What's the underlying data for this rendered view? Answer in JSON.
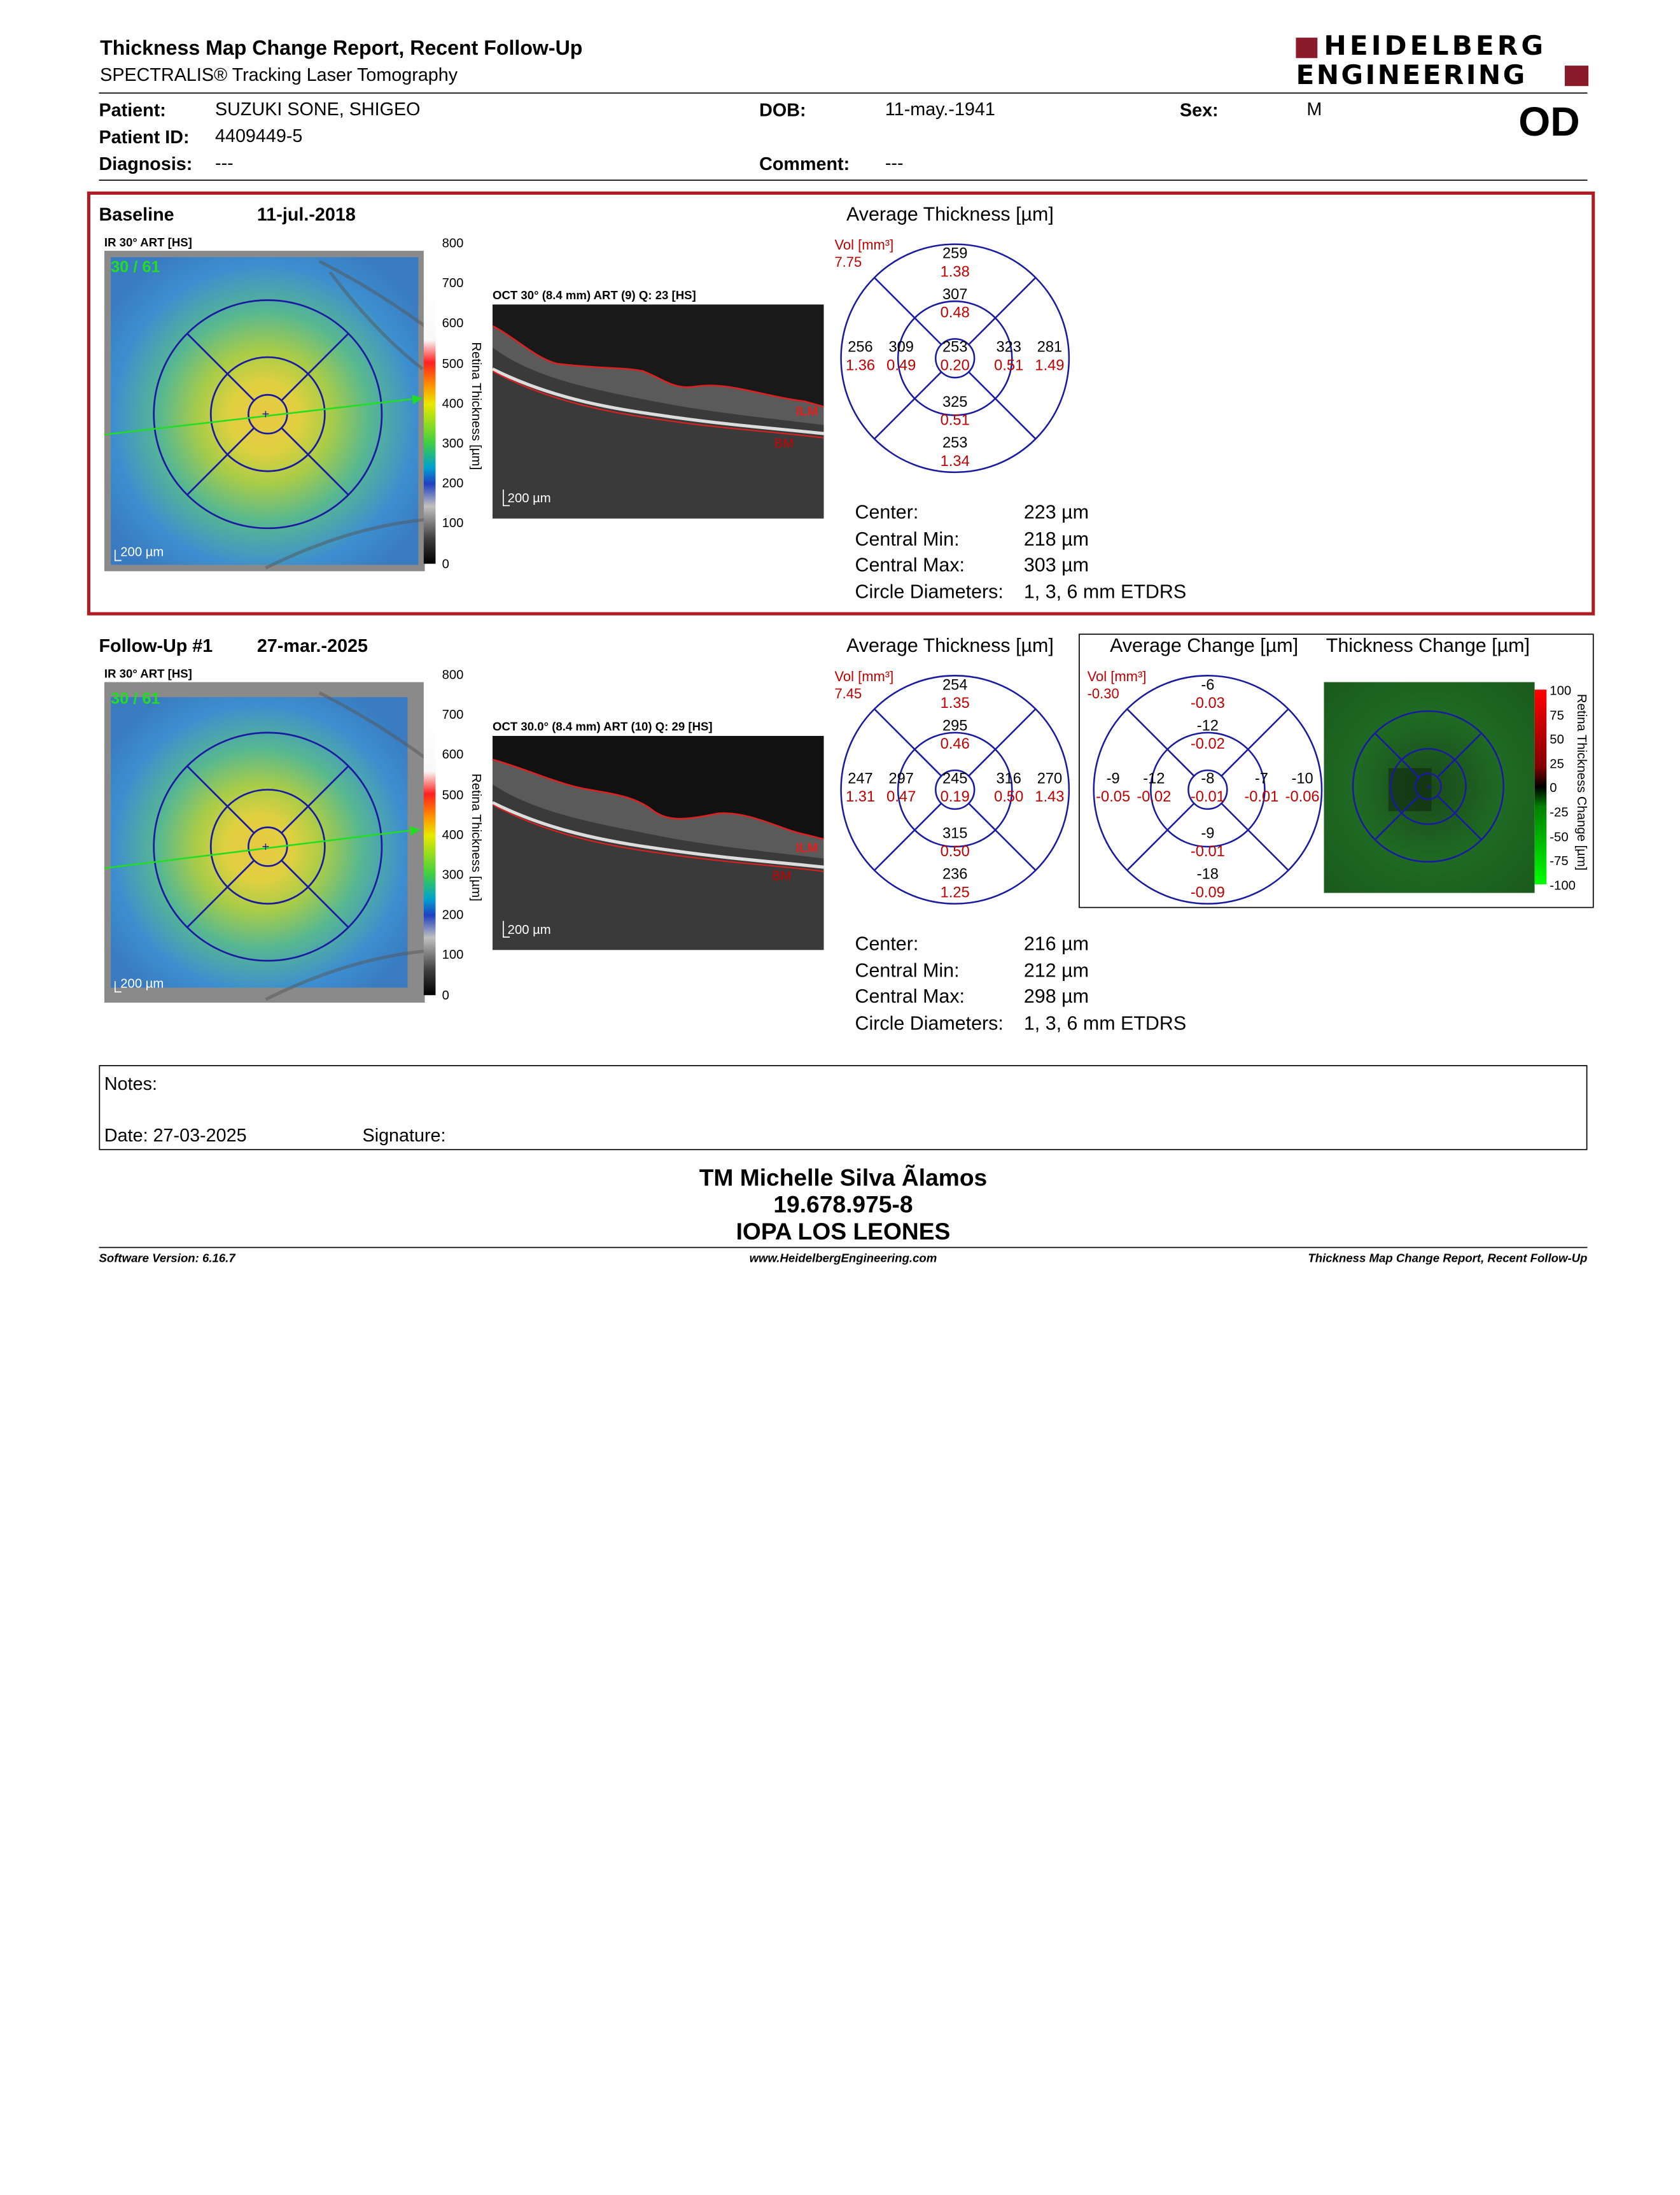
{
  "header": {
    "title": "Thickness Map Change Report, Recent Follow-Up",
    "subtitle": "SPECTRALIS® Tracking Laser Tomography",
    "logo_line1": "HEIDELBERG",
    "logo_line2": "ENGINEERING",
    "eye": "OD",
    "brand_color": "#8b1a2b"
  },
  "patient": {
    "patient_label": "Patient:",
    "patient_value": "SUZUKI SONE, SHIGEO",
    "id_label": "Patient ID:",
    "id_value": "4409449-5",
    "diagnosis_label": "Diagnosis:",
    "diagnosis_value": "---",
    "dob_label": "DOB:",
    "dob_value": "11-may.-1941",
    "comment_label": "Comment:",
    "comment_value": "---",
    "sex_label": "Sex:",
    "sex_value": "M"
  },
  "baseline": {
    "label": "Baseline",
    "date": "11-jul.-2018",
    "ir_label": "IR 30° ART [HS]",
    "ir_counter": "30 / 61",
    "oct_label": "OCT 30° (8.4 mm) ART (9) Q: 23 [HS]",
    "scale": "200 µm",
    "ilm": "ILM",
    "bm": "BM",
    "colorbar_ticks": [
      "800",
      "700",
      "600",
      "500",
      "400",
      "300",
      "200",
      "100",
      "0"
    ],
    "colorbar_title": "Retina Thickness [µm]",
    "avg_title": "Average Thickness [µm]",
    "vol_label": "Vol [mm³]",
    "vol_value": "7.75",
    "grid": {
      "outer_top": [
        "259",
        "1.38"
      ],
      "inner_top": [
        "307",
        "0.48"
      ],
      "outer_left": [
        "256",
        "1.36"
      ],
      "inner_left": [
        "309",
        "0.49"
      ],
      "center": [
        "253",
        "0.20"
      ],
      "inner_right": [
        "323",
        "0.51"
      ],
      "outer_right": [
        "281",
        "1.49"
      ],
      "inner_bottom": [
        "325",
        "0.51"
      ],
      "outer_bottom": [
        "253",
        "1.34"
      ]
    },
    "stats": {
      "center_label": "Center:",
      "center_value": "223 µm",
      "min_label": "Central Min:",
      "min_value": "218 µm",
      "max_label": "Central Max:",
      "max_value": "303 µm",
      "circ_label": "Circle Diameters:",
      "circ_value": "1, 3, 6 mm ETDRS"
    }
  },
  "followup": {
    "label": "Follow-Up #1",
    "date": "27-mar.-2025",
    "ir_label": "IR 30° ART [HS]",
    "ir_counter": "30 / 61",
    "oct_label": "OCT 30.0° (8.4 mm) ART (10) Q: 29 [HS]",
    "scale": "200 µm",
    "ilm": "ILM",
    "bm": "BM",
    "colorbar_ticks": [
      "800",
      "700",
      "600",
      "500",
      "400",
      "300",
      "200",
      "100",
      "0"
    ],
    "colorbar_title": "Retina Thickness [µm]",
    "avg_title": "Average Thickness [µm]",
    "vol_label": "Vol [mm³]",
    "vol_value": "7.45",
    "grid": {
      "outer_top": [
        "254",
        "1.35"
      ],
      "inner_top": [
        "295",
        "0.46"
      ],
      "outer_left": [
        "247",
        "1.31"
      ],
      "inner_left": [
        "297",
        "0.47"
      ],
      "center": [
        "245",
        "0.19"
      ],
      "inner_right": [
        "316",
        "0.50"
      ],
      "outer_right": [
        "270",
        "1.43"
      ],
      "inner_bottom": [
        "315",
        "0.50"
      ],
      "outer_bottom": [
        "236",
        "1.25"
      ]
    },
    "stats": {
      "center_label": "Center:",
      "center_value": "216 µm",
      "min_label": "Central Min:",
      "min_value": "212 µm",
      "max_label": "Central Max:",
      "max_value": "298 µm",
      "circ_label": "Circle Diameters:",
      "circ_value": "1, 3, 6 mm ETDRS"
    },
    "change_title": "Average Change [µm]",
    "change_vol_label": "Vol [mm³]",
    "change_vol_value": "-0.30",
    "change_grid": {
      "outer_top": [
        "-6",
        "-0.03"
      ],
      "inner_top": [
        "-12",
        "-0.02"
      ],
      "outer_left": [
        "-9",
        "-0.05"
      ],
      "inner_left": [
        "-12",
        "-0.02"
      ],
      "center": [
        "-8",
        "-0.01"
      ],
      "inner_right": [
        "-7",
        "-0.01"
      ],
      "outer_right": [
        "-10",
        "-0.06"
      ],
      "inner_bottom": [
        "-9",
        "-0.01"
      ],
      "outer_bottom": [
        "-18",
        "-0.09"
      ]
    },
    "tchange_title": "Thickness Change [µm]",
    "tchange_ticks": [
      "100",
      "75",
      "50",
      "25",
      "0",
      "-25",
      "-50",
      "-75",
      "-100"
    ],
    "tchange_bar_title": "Retina Thickness Change [µm]"
  },
  "notes": {
    "notes_label": "Notes:",
    "date_label": "Date: 27-03-2025",
    "signature_label": "Signature:"
  },
  "signature_block": {
    "name": "TM Michelle Silva Ãlamos",
    "rut": "19.678.975-8",
    "institution": "IOPA LOS LEONES"
  },
  "footer": {
    "software": "Software Version: 6.16.7",
    "website": "www.HeidelbergEngineering.com",
    "report": "Thickness Map Change Report, Recent Follow-Up"
  }
}
